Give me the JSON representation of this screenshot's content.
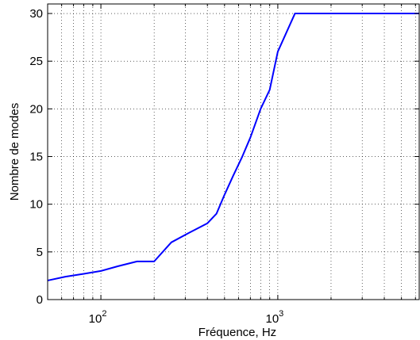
{
  "chart_data": {
    "type": "line",
    "title": "",
    "xlabel": "Fréquence, Hz",
    "ylabel": "Nombre de modes",
    "xscale": "log",
    "xlim": [
      50,
      6300
    ],
    "ylim": [
      0,
      31
    ],
    "x_tick_labels": [
      {
        "value": 100,
        "base": "10",
        "exp": "2"
      },
      {
        "value": 1000,
        "base": "10",
        "exp": "3"
      }
    ],
    "y_ticks": [
      0,
      5,
      10,
      15,
      20,
      25,
      30
    ],
    "grid": true,
    "line_color": "#0000ff",
    "series": [
      {
        "x": [
          50,
          63,
          80,
          100,
          125,
          160,
          200,
          250,
          315,
          400,
          450,
          500,
          560,
          630,
          700,
          800,
          900,
          1000,
          1250,
          1600,
          2000,
          2500,
          3150,
          4000,
          5000,
          6300
        ],
        "y": [
          2,
          2.4,
          2.7,
          3,
          3.5,
          4,
          4,
          6,
          7,
          8,
          9,
          11,
          13,
          15,
          17,
          20,
          22,
          26,
          30,
          30,
          30,
          30,
          30,
          30,
          30,
          30
        ]
      }
    ]
  }
}
